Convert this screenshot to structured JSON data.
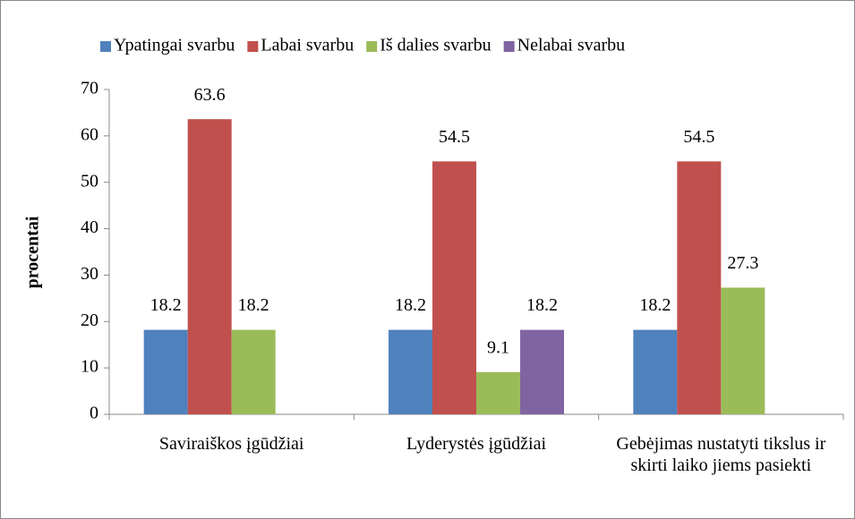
{
  "chart_data": {
    "type": "bar",
    "categories": [
      "Saviraiškos įgūdžiai",
      "Lyderystės įgūdžiai",
      "Gebėjimas nustatyti tikslus ir skirti laiko jiems pasiekti"
    ],
    "series": [
      {
        "name": "Ypatingai svarbu",
        "color": "#4f81bd",
        "values": [
          18.2,
          18.2,
          18.2
        ]
      },
      {
        "name": "Labai svarbu",
        "color": "#c0504d",
        "values": [
          63.6,
          54.5,
          54.5
        ]
      },
      {
        "name": "Iš dalies svarbu",
        "color": "#9bbb59",
        "values": [
          18.2,
          9.1,
          27.3
        ]
      },
      {
        "name": "Nelabai svarbu",
        "color": "#8064a2",
        "values": [
          null,
          18.2,
          null
        ]
      }
    ],
    "ylabel": "procentai",
    "ylim": [
      0,
      70
    ],
    "yticks": [
      0,
      10,
      20,
      30,
      40,
      50,
      60,
      70
    ],
    "legend": "top"
  }
}
